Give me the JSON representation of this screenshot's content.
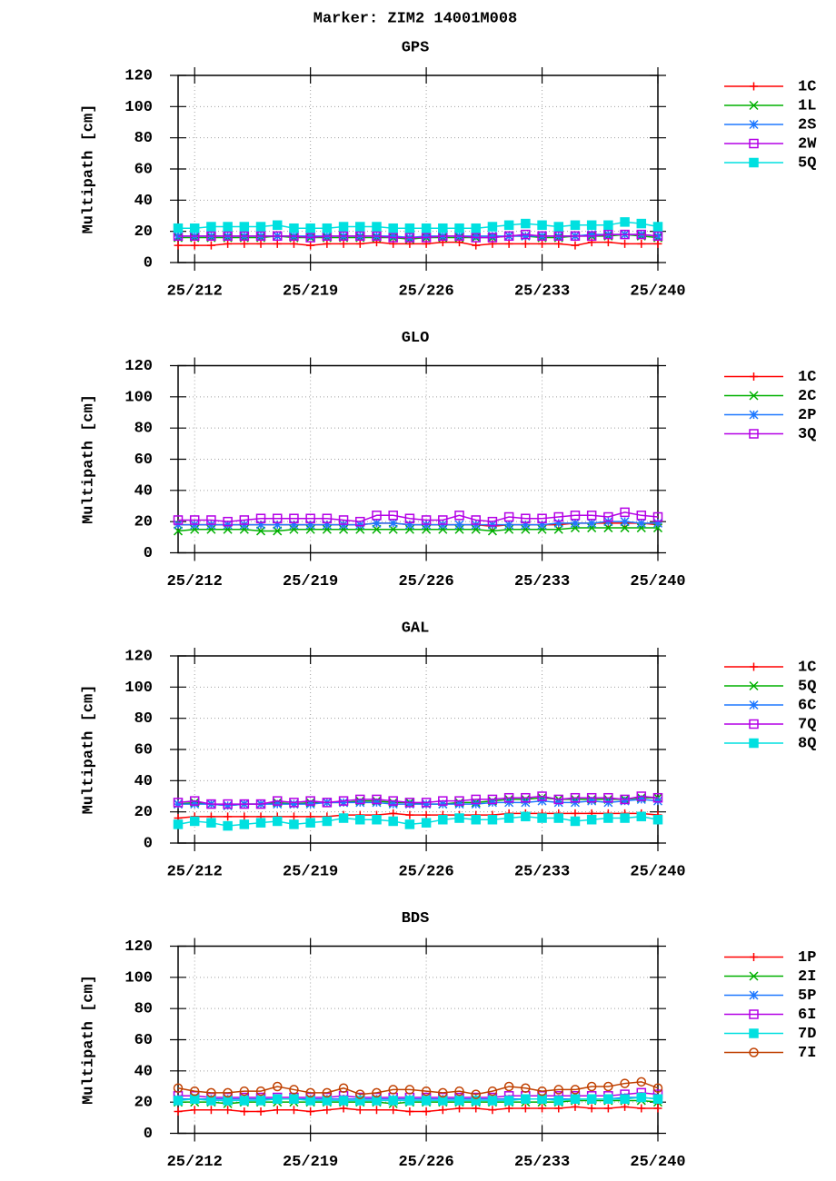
{
  "title": "Marker: ZIM2 14001M008",
  "chart_data": [
    {
      "type": "line",
      "title": "GPS",
      "y_label": "Multipath [cm]",
      "x": [
        211,
        212,
        213,
        214,
        215,
        216,
        217,
        218,
        219,
        220,
        221,
        222,
        223,
        224,
        225,
        226,
        227,
        228,
        229,
        230,
        231,
        232,
        233,
        234,
        235,
        236,
        237,
        238,
        239,
        240
      ],
      "xlim": [
        211,
        240
      ],
      "xticks": [
        {
          "value": 212,
          "label": "25/212"
        },
        {
          "value": 219,
          "label": "25/219"
        },
        {
          "value": 226,
          "label": "25/226"
        },
        {
          "value": 233,
          "label": "25/233"
        },
        {
          "value": 240,
          "label": "25/240"
        }
      ],
      "ylim": [
        0,
        120
      ],
      "yticks": [
        0,
        20,
        40,
        60,
        80,
        100,
        120
      ],
      "grid": true,
      "legend": "right",
      "series": [
        {
          "name": "1C",
          "color": "#ff0000",
          "marker": "plus",
          "values": [
            11,
            11,
            11,
            12,
            12,
            12,
            12,
            12,
            11,
            12,
            12,
            12,
            13,
            12,
            12,
            12,
            13,
            13,
            11,
            12,
            12,
            12,
            12,
            12,
            11,
            13,
            13,
            12,
            12,
            12
          ]
        },
        {
          "name": "1L",
          "color": "#00b000",
          "marker": "cross",
          "values": [
            16,
            16,
            16,
            16,
            16,
            16,
            17,
            16,
            16,
            16,
            16,
            16,
            16,
            16,
            15,
            16,
            16,
            16,
            16,
            16,
            17,
            17,
            16,
            16,
            17,
            17,
            17,
            18,
            17,
            16
          ]
        },
        {
          "name": "2S",
          "color": "#1e78ff",
          "marker": "star",
          "values": [
            17,
            17,
            17,
            17,
            17,
            17,
            17,
            17,
            17,
            17,
            17,
            17,
            17,
            17,
            16,
            17,
            17,
            17,
            17,
            17,
            17,
            17,
            17,
            17,
            17,
            18,
            18,
            18,
            18,
            17
          ]
        },
        {
          "name": "2W",
          "color": "#b400e6",
          "marker": "square",
          "values": [
            17,
            17,
            17,
            17,
            17,
            17,
            17,
            17,
            16,
            17,
            17,
            17,
            17,
            16,
            16,
            16,
            17,
            17,
            16,
            16,
            17,
            18,
            17,
            17,
            17,
            17,
            18,
            18,
            18,
            17
          ]
        },
        {
          "name": "5Q",
          "color": "#00e0e0",
          "marker": "filled-square",
          "values": [
            22,
            22,
            23,
            23,
            23,
            23,
            24,
            22,
            22,
            22,
            23,
            23,
            23,
            22,
            22,
            22,
            22,
            22,
            22,
            23,
            24,
            25,
            24,
            23,
            24,
            24,
            24,
            26,
            25,
            23
          ]
        }
      ]
    },
    {
      "type": "line",
      "title": "GLO",
      "y_label": "Multipath [cm]",
      "x": [
        211,
        212,
        213,
        214,
        215,
        216,
        217,
        218,
        219,
        220,
        221,
        222,
        223,
        224,
        225,
        226,
        227,
        228,
        229,
        230,
        231,
        232,
        233,
        234,
        235,
        236,
        237,
        238,
        239,
        240
      ],
      "xlim": [
        211,
        240
      ],
      "xticks": [
        {
          "value": 212,
          "label": "25/212"
        },
        {
          "value": 219,
          "label": "25/219"
        },
        {
          "value": 226,
          "label": "25/226"
        },
        {
          "value": 233,
          "label": "25/233"
        },
        {
          "value": 240,
          "label": "25/240"
        }
      ],
      "ylim": [
        0,
        120
      ],
      "yticks": [
        0,
        20,
        40,
        60,
        80,
        100,
        120
      ],
      "grid": true,
      "legend": "right",
      "series": [
        {
          "name": "1C",
          "color": "#ff0000",
          "marker": "plus",
          "values": [
            18,
            18,
            18,
            18,
            18,
            18,
            18,
            18,
            18,
            18,
            18,
            18,
            19,
            19,
            18,
            18,
            18,
            18,
            18,
            17,
            18,
            18,
            18,
            18,
            19,
            19,
            19,
            19,
            19,
            18
          ]
        },
        {
          "name": "2C",
          "color": "#00b000",
          "marker": "cross",
          "values": [
            14,
            15,
            15,
            15,
            15,
            14,
            14,
            15,
            15,
            15,
            15,
            15,
            15,
            15,
            15,
            15,
            15,
            15,
            15,
            14,
            15,
            15,
            15,
            15,
            16,
            16,
            16,
            16,
            16,
            16
          ]
        },
        {
          "name": "2P",
          "color": "#1e78ff",
          "marker": "star",
          "values": [
            18,
            18,
            18,
            18,
            18,
            18,
            18,
            18,
            18,
            18,
            18,
            18,
            19,
            19,
            18,
            18,
            18,
            18,
            18,
            18,
            18,
            18,
            18,
            19,
            19,
            19,
            20,
            20,
            19,
            19
          ]
        },
        {
          "name": "3Q",
          "color": "#b400e6",
          "marker": "square",
          "values": [
            21,
            21,
            21,
            20,
            21,
            22,
            22,
            22,
            22,
            22,
            21,
            20,
            24,
            24,
            22,
            21,
            21,
            24,
            21,
            20,
            23,
            22,
            22,
            23,
            24,
            24,
            23,
            26,
            24,
            23
          ]
        }
      ]
    },
    {
      "type": "line",
      "title": "GAL",
      "y_label": "Multipath [cm]",
      "x": [
        211,
        212,
        213,
        214,
        215,
        216,
        217,
        218,
        219,
        220,
        221,
        222,
        223,
        224,
        225,
        226,
        227,
        228,
        229,
        230,
        231,
        232,
        233,
        234,
        235,
        236,
        237,
        238,
        239,
        240
      ],
      "xlim": [
        211,
        240
      ],
      "xticks": [
        {
          "value": 212,
          "label": "25/212"
        },
        {
          "value": 219,
          "label": "25/219"
        },
        {
          "value": 226,
          "label": "25/226"
        },
        {
          "value": 233,
          "label": "25/233"
        },
        {
          "value": 240,
          "label": "25/240"
        }
      ],
      "ylim": [
        0,
        120
      ],
      "yticks": [
        0,
        20,
        40,
        60,
        80,
        100,
        120
      ],
      "grid": true,
      "legend": "right",
      "series": [
        {
          "name": "1C",
          "color": "#ff0000",
          "marker": "plus",
          "values": [
            16,
            17,
            17,
            17,
            17,
            17,
            17,
            17,
            17,
            17,
            18,
            18,
            18,
            19,
            18,
            18,
            18,
            18,
            18,
            18,
            19,
            19,
            19,
            19,
            19,
            19,
            19,
            19,
            19,
            18
          ]
        },
        {
          "name": "5Q",
          "color": "#00b000",
          "marker": "cross",
          "values": [
            25,
            26,
            25,
            24,
            25,
            25,
            26,
            25,
            26,
            26,
            26,
            27,
            27,
            26,
            26,
            25,
            25,
            26,
            26,
            27,
            28,
            28,
            29,
            28,
            28,
            28,
            28,
            28,
            29,
            29
          ]
        },
        {
          "name": "6C",
          "color": "#1e78ff",
          "marker": "star",
          "values": [
            25,
            25,
            25,
            24,
            25,
            25,
            25,
            25,
            25,
            26,
            26,
            26,
            26,
            25,
            25,
            25,
            25,
            25,
            25,
            26,
            26,
            26,
            27,
            26,
            26,
            27,
            26,
            27,
            28,
            27
          ]
        },
        {
          "name": "7Q",
          "color": "#b400e6",
          "marker": "square",
          "values": [
            26,
            27,
            25,
            25,
            25,
            25,
            27,
            26,
            27,
            26,
            27,
            28,
            28,
            27,
            26,
            26,
            27,
            27,
            28,
            28,
            29,
            29,
            30,
            28,
            29,
            29,
            29,
            28,
            30,
            29
          ]
        },
        {
          "name": "8Q",
          "color": "#00e0e0",
          "marker": "filled-square",
          "values": [
            12,
            14,
            13,
            11,
            12,
            13,
            14,
            12,
            13,
            14,
            16,
            15,
            15,
            14,
            12,
            13,
            15,
            16,
            15,
            15,
            16,
            17,
            16,
            16,
            14,
            15,
            16,
            16,
            17,
            15
          ]
        }
      ]
    },
    {
      "type": "line",
      "title": "BDS",
      "y_label": "Multipath [cm]",
      "x": [
        211,
        212,
        213,
        214,
        215,
        216,
        217,
        218,
        219,
        220,
        221,
        222,
        223,
        224,
        225,
        226,
        227,
        228,
        229,
        230,
        231,
        232,
        233,
        234,
        235,
        236,
        237,
        238,
        239,
        240
      ],
      "xlim": [
        211,
        240
      ],
      "xticks": [
        {
          "value": 212,
          "label": "25/212"
        },
        {
          "value": 219,
          "label": "25/219"
        },
        {
          "value": 226,
          "label": "25/226"
        },
        {
          "value": 233,
          "label": "25/233"
        },
        {
          "value": 240,
          "label": "25/240"
        }
      ],
      "ylim": [
        0,
        120
      ],
      "yticks": [
        0,
        20,
        40,
        60,
        80,
        100,
        120
      ],
      "grid": true,
      "legend": "right",
      "series": [
        {
          "name": "1P",
          "color": "#ff0000",
          "marker": "plus",
          "values": [
            14,
            15,
            15,
            15,
            14,
            14,
            15,
            15,
            14,
            15,
            16,
            15,
            15,
            15,
            14,
            14,
            15,
            16,
            16,
            15,
            16,
            16,
            16,
            16,
            17,
            16,
            16,
            17,
            16,
            16
          ]
        },
        {
          "name": "2I",
          "color": "#00b000",
          "marker": "cross",
          "values": [
            20,
            20,
            20,
            19,
            20,
            20,
            20,
            20,
            20,
            20,
            20,
            20,
            20,
            19,
            20,
            20,
            20,
            20,
            20,
            20,
            20,
            20,
            20,
            20,
            21,
            21,
            21,
            21,
            21,
            20
          ]
        },
        {
          "name": "5P",
          "color": "#1e78ff",
          "marker": "star",
          "values": [
            22,
            22,
            22,
            22,
            22,
            22,
            22,
            22,
            22,
            22,
            22,
            22,
            22,
            22,
            22,
            22,
            22,
            22,
            22,
            22,
            22,
            22,
            22,
            22,
            22,
            22,
            22,
            23,
            23,
            22
          ]
        },
        {
          "name": "6I",
          "color": "#b400e6",
          "marker": "square",
          "values": [
            24,
            24,
            23,
            23,
            23,
            23,
            23,
            23,
            23,
            23,
            24,
            23,
            23,
            23,
            23,
            23,
            23,
            23,
            23,
            23,
            24,
            24,
            24,
            24,
            24,
            24,
            24,
            25,
            26,
            25
          ]
        },
        {
          "name": "7D",
          "color": "#00e0e0",
          "marker": "filled-square",
          "values": [
            21,
            22,
            21,
            21,
            21,
            21,
            22,
            22,
            21,
            21,
            21,
            21,
            21,
            21,
            21,
            21,
            21,
            21,
            21,
            21,
            21,
            22,
            22,
            21,
            22,
            22,
            22,
            22,
            23,
            22
          ]
        },
        {
          "name": "7I",
          "color": "#c04000",
          "marker": "circle",
          "values": [
            29,
            27,
            26,
            26,
            27,
            27,
            30,
            28,
            26,
            26,
            29,
            25,
            26,
            28,
            28,
            27,
            26,
            27,
            25,
            27,
            30,
            29,
            27,
            28,
            28,
            30,
            30,
            32,
            33,
            29
          ]
        }
      ]
    }
  ]
}
